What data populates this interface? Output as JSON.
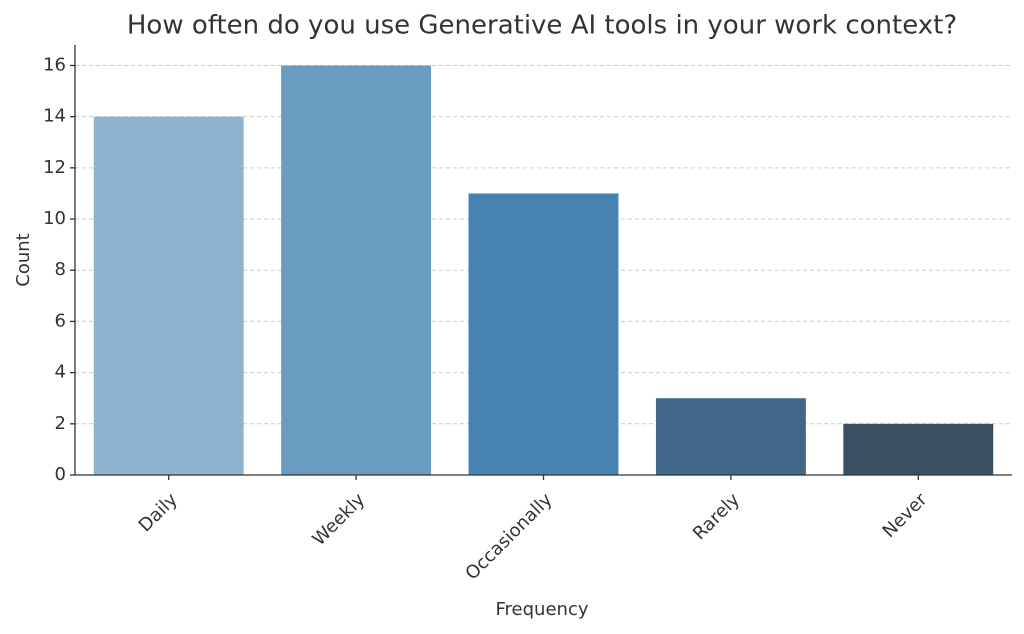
{
  "chart_data": {
    "type": "bar",
    "title": "How often do you use Generative AI tools in your work context?",
    "x_label": "Frequency",
    "y_label": "Count",
    "categories": [
      "Daily",
      "Weekly",
      "Occasionally",
      "Rarely",
      "Never"
    ],
    "values": [
      14,
      16,
      11,
      3,
      2
    ],
    "colors": [
      "#8fb3ce",
      "#6a9bc0",
      "#4882b0",
      "#41688a",
      "#3a4f62"
    ],
    "ylim": [
      0,
      16.8
    ],
    "yticks": [
      0,
      2,
      4,
      6,
      8,
      10,
      12,
      14,
      16
    ],
    "grid": true
  }
}
